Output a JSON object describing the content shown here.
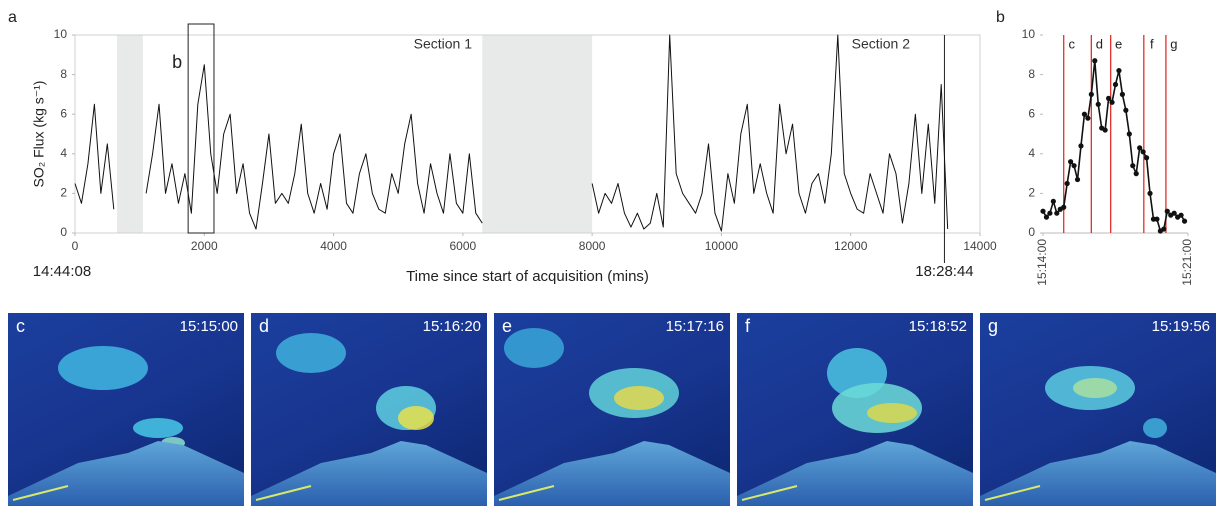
{
  "chart_data": [
    {
      "type": "line",
      "panel_label": "a",
      "ylabel": "SO₂ Flux (kg s⁻¹)",
      "xlabel": "Time since start of acquisition (mins)",
      "start_label": "14:44:08",
      "vline": 13450,
      "vline_label": "18:28:44",
      "annotations": [
        "Section 1",
        "Section 2"
      ],
      "zoom_box": [
        1750,
        2150
      ],
      "zoom_label": "b",
      "shaded": [
        [
          650,
          1050
        ],
        [
          6300,
          8000
        ]
      ],
      "shade_color": "#e8eae9",
      "xlim": [
        0,
        14000
      ],
      "xticks": [
        0,
        2000,
        4000,
        6000,
        8000,
        10000,
        12000,
        14000
      ],
      "ylim": [
        0,
        10
      ],
      "yticks": [
        0,
        2,
        4,
        6,
        8,
        10
      ],
      "x": [
        0,
        100,
        200,
        300,
        400,
        500,
        600,
        700,
        800,
        900,
        1000,
        1100,
        1200,
        1300,
        1400,
        1500,
        1600,
        1700,
        1800,
        1900,
        2000,
        2100,
        2200,
        2300,
        2400,
        2500,
        2600,
        2700,
        2800,
        2900,
        3000,
        3100,
        3200,
        3300,
        3400,
        3500,
        3600,
        3700,
        3800,
        3900,
        4000,
        4100,
        4200,
        4300,
        4400,
        4500,
        4600,
        4700,
        4800,
        4900,
        5000,
        5100,
        5200,
        5300,
        5400,
        5500,
        5600,
        5700,
        5800,
        5900,
        6000,
        6100,
        6200,
        6300,
        6400,
        6500,
        6600,
        6700,
        6800,
        6900,
        7000,
        7100,
        7200,
        7300,
        7400,
        7500,
        7600,
        7700,
        7800,
        7900,
        8000,
        8100,
        8200,
        8300,
        8400,
        8500,
        8600,
        8700,
        8800,
        8900,
        9000,
        9100,
        9200,
        9300,
        9400,
        9500,
        9600,
        9700,
        9800,
        9900,
        10000,
        10100,
        10200,
        10300,
        10400,
        10500,
        10600,
        10700,
        10800,
        10900,
        11000,
        11100,
        11200,
        11300,
        11400,
        11500,
        11600,
        11700,
        11800,
        11900,
        12000,
        12100,
        12200,
        12300,
        12400,
        12500,
        12600,
        12700,
        12800,
        12900,
        13000,
        13100,
        13200,
        13300,
        13400,
        13500
      ],
      "series": [
        {
          "color": "#111111",
          "values": [
            2.5,
            1.5,
            3.5,
            6.5,
            2,
            4.5,
            1.2,
            null,
            null,
            null,
            null,
            2,
            4,
            6.5,
            2,
            3.5,
            1.5,
            3,
            1,
            6.5,
            8.5,
            4,
            2,
            5,
            6,
            2,
            3.5,
            1,
            0.2,
            2.5,
            5,
            1.5,
            2,
            1.5,
            3,
            5.5,
            2,
            1,
            2.5,
            1.2,
            4,
            5,
            1.5,
            1,
            3,
            4,
            2,
            1.2,
            1,
            3,
            2,
            4.5,
            6,
            2.5,
            1,
            3.5,
            2,
            1,
            4,
            1.5,
            1,
            4,
            1,
            0.5,
            null,
            null,
            null,
            null,
            null,
            null,
            null,
            null,
            null,
            null,
            null,
            null,
            null,
            null,
            null,
            null,
            2.5,
            1,
            2,
            1.5,
            2.5,
            1,
            0.3,
            1,
            0.2,
            0.5,
            2,
            0.3,
            10,
            3,
            2,
            1.5,
            1,
            2,
            4.5,
            1,
            0.1,
            3,
            1.5,
            5,
            6.5,
            2,
            3.5,
            2,
            1,
            6.5,
            4,
            5.5,
            2,
            1,
            2.5,
            3,
            1.5,
            4,
            10,
            3,
            2,
            1.2,
            1,
            3,
            2,
            1,
            4,
            3,
            0.5,
            2.5,
            6,
            2,
            5.5,
            1.5,
            7.5,
            0.2
          ]
        }
      ]
    },
    {
      "type": "line",
      "panel_label": "b",
      "markers": true,
      "xlim": [
        "15:14:00",
        "15:21:00"
      ],
      "xticks": [
        "15:14:00",
        "15:21:00"
      ],
      "ylim": [
        0,
        10
      ],
      "yticks": [
        0,
        2,
        4,
        6,
        8,
        10
      ],
      "vlines": [
        "15:15:00",
        "15:16:20",
        "15:17:16",
        "15:18:52",
        "15:19:56"
      ],
      "vline_labels": [
        "c",
        "d",
        "e",
        "f",
        "g"
      ],
      "vline_color": "#e0302a",
      "x": [
        "15:14:00",
        "15:14:10",
        "15:14:20",
        "15:14:30",
        "15:14:40",
        "15:14:50",
        "15:15:00",
        "15:15:10",
        "15:15:20",
        "15:15:30",
        "15:15:40",
        "15:15:50",
        "15:16:00",
        "15:16:10",
        "15:16:20",
        "15:16:30",
        "15:16:40",
        "15:16:50",
        "15:17:00",
        "15:17:10",
        "15:17:20",
        "15:17:30",
        "15:17:40",
        "15:17:50",
        "15:18:00",
        "15:18:10",
        "15:18:20",
        "15:18:30",
        "15:18:40",
        "15:18:50",
        "15:19:00",
        "15:19:10",
        "15:19:20",
        "15:19:30",
        "15:19:40",
        "15:19:50",
        "15:20:00",
        "15:20:10",
        "15:20:20",
        "15:20:30",
        "15:20:40",
        "15:20:50"
      ],
      "series": [
        {
          "color": "#111111",
          "values": [
            1.1,
            0.8,
            1.0,
            1.6,
            1.0,
            1.2,
            1.3,
            2.5,
            3.6,
            3.4,
            2.7,
            4.4,
            6.0,
            5.8,
            7.0,
            8.7,
            6.5,
            5.3,
            5.2,
            6.8,
            6.6,
            7.5,
            8.2,
            7.0,
            6.2,
            5.0,
            3.4,
            3.0,
            4.3,
            4.1,
            3.8,
            2.0,
            0.7,
            0.7,
            0.1,
            0.2,
            1.1,
            0.9,
            1.0,
            0.8,
            0.9,
            0.6
          ]
        }
      ]
    }
  ],
  "panels": [
    {
      "label": "c",
      "time": "15:15:00"
    },
    {
      "label": "d",
      "time": "15:16:20"
    },
    {
      "label": "e",
      "time": "15:17:16"
    },
    {
      "label": "f",
      "time": "15:18:52"
    },
    {
      "label": "g",
      "time": "15:19:56"
    }
  ]
}
